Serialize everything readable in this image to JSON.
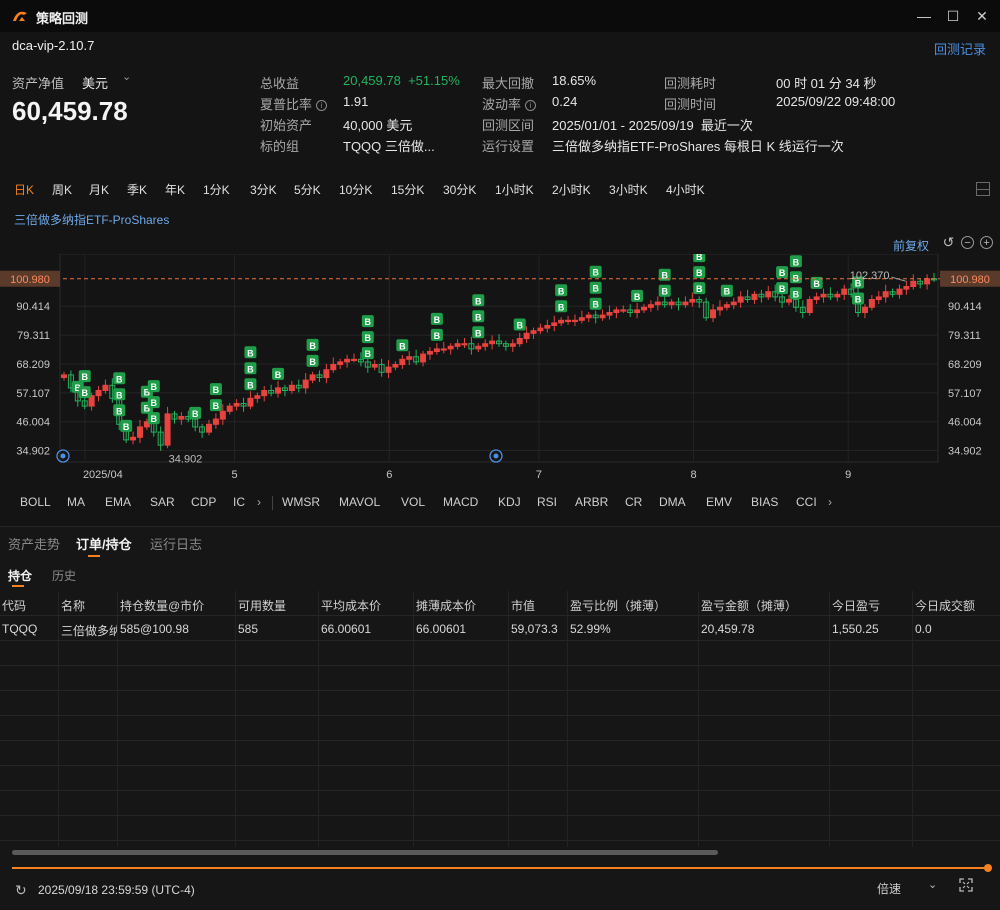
{
  "window": {
    "title": "策略回测",
    "minimize": "—",
    "maximize": "☐",
    "close": "✕"
  },
  "header": {
    "strategy_name": "dca-vip-2.10.7",
    "history_link": "回测记录",
    "nav_label": "资产净值",
    "currency": "美元",
    "nav_value": "60,459.78"
  },
  "stats": {
    "total_return_label": "总收益",
    "total_return_value": "20,459.78",
    "total_return_pct": "+51.15%",
    "sharpe_label": "夏普比率",
    "sharpe_value": "1.91",
    "initial_label": "初始资产",
    "initial_value": "40,000  美元",
    "target_label": "标的组",
    "target_value": "TQQQ 三倍做...",
    "max_dd_label": "最大回撤",
    "max_dd_value": "18.65%",
    "vol_label": "波动率",
    "vol_value": "0.24",
    "range_label": "回测区间",
    "range_value": "2025/01/01 - 2025/09/19",
    "range_tag": "最近一次",
    "setting_label": "运行设置",
    "setting_value": "三倍做多纳指ETF-ProShares 每根日 K 线运行一次",
    "duration_label": "回测耗时",
    "duration_value": "00 时 01 分 34 秒",
    "time_label": "回测时间",
    "time_value": "2025/09/22 09:48:00"
  },
  "periods": [
    "日K",
    "周K",
    "月K",
    "季K",
    "年K",
    "1分K",
    "3分K",
    "5分K",
    "10分K",
    "15分K",
    "30分K",
    "1小时K",
    "2小时K",
    "3小时K",
    "4小时K"
  ],
  "instrument_name": "三倍做多纳指ETF-ProShares",
  "adjust_label": "前复权",
  "chart_data": {
    "type": "candlestick",
    "y_ticks": [
      "100.980",
      "90.414",
      "79.311",
      "68.209",
      "57.107",
      "46.004",
      "34.902"
    ],
    "y_tick_values": [
      100.98,
      90.414,
      79.311,
      68.209,
      57.107,
      46.004,
      34.902
    ],
    "current_price_label": "100.980",
    "current_price": 100.98,
    "ylim": [
      30.5,
      110.5
    ],
    "x_labels": [
      "2025/04",
      "5",
      "6",
      "7",
      "8",
      "9"
    ],
    "x_label_dates": [
      "2025-04-01",
      "2025-05-01",
      "2025-06-01",
      "2025-07-01",
      "2025-08-01",
      "2025-09-01"
    ],
    "xlim": [
      "2025-03-27",
      "2025-09-19"
    ],
    "high_label": "102.370",
    "high_value": 102.37,
    "low_label": "34.902",
    "low_value": 34.902,
    "buy_marker_text": "B",
    "colors": {
      "up": "#e8433f",
      "down": "#22b35e",
      "buy": "#1f9e4a",
      "price_line": "#e8733a"
    },
    "closes": [
      64,
      59,
      54,
      52,
      56,
      58,
      60,
      55,
      45,
      39,
      40,
      44,
      46,
      42,
      37,
      49,
      47,
      48,
      47,
      44,
      42,
      45,
      47,
      50,
      52,
      53,
      52,
      55,
      56,
      58,
      57,
      59,
      58,
      60,
      59,
      62,
      64,
      63,
      66,
      68,
      69,
      70,
      70,
      69,
      67,
      68,
      65,
      67,
      68,
      70,
      71,
      69,
      72,
      73,
      74,
      74,
      75,
      76,
      76,
      74,
      75,
      76,
      77,
      76,
      75,
      76,
      78,
      80,
      81,
      82,
      83,
      84,
      85,
      85,
      85,
      86,
      87,
      86,
      87,
      88,
      89,
      89,
      88,
      89,
      90,
      91,
      92,
      91,
      92,
      91,
      92,
      93,
      92,
      86,
      89,
      90,
      91,
      92,
      94,
      93,
      95,
      94,
      96,
      94,
      92,
      93,
      90,
      88,
      93,
      94,
      95,
      94,
      95,
      97,
      95,
      88,
      90,
      93,
      94,
      96,
      95,
      97,
      98,
      100,
      99,
      101,
      100.98
    ]
  },
  "indicators": [
    "BOLL",
    "MA",
    "EMA",
    "SAR",
    "CDP",
    "IC",
    "WMSR",
    "MAVOL",
    "VOL",
    "MACD",
    "KDJ",
    "RSI",
    "ARBR",
    "CR",
    "DMA",
    "EMV",
    "BIAS",
    "CCI"
  ],
  "tabs": {
    "equity": "资产走势",
    "orders": "订单/持仓",
    "log": "运行日志",
    "holdings": "持仓",
    "history": "历史"
  },
  "table": {
    "headers": [
      "代码",
      "名称",
      "持仓数量@市价",
      "可用数量",
      "平均成本价",
      "摊薄成本价",
      "市值",
      "盈亏比例（摊薄）",
      "盈亏金额（摊薄）",
      "今日盈亏",
      "今日成交额"
    ],
    "rows": [
      [
        "TQQQ",
        "三倍做多纳",
        "585@100.98",
        "585",
        "66.00601",
        "66.00601",
        "59,073.3",
        "52.99%",
        "20,459.78",
        "1,550.25",
        "0.0"
      ]
    ]
  },
  "footer": {
    "sim_time": "2025/09/18 23:59:59 (UTC-4)",
    "speed_label": "倍速",
    "progress": 1.0
  }
}
